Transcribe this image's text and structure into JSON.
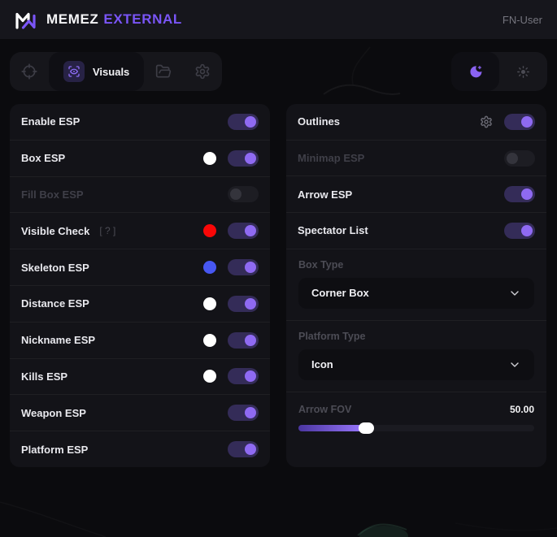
{
  "header": {
    "brand": "MEMEZ",
    "brand_accent": "EXTERNAL",
    "username": "FN-User"
  },
  "toolbar": {
    "active_tab": "Visuals"
  },
  "colors": {
    "accent": "#7a55f7",
    "toggle_on_knob": "#8f6af2",
    "toggle_on_track": "#342c58"
  },
  "left_panel": {
    "rows": [
      {
        "label": "Enable ESP",
        "enabled": true
      },
      {
        "label": "Box ESP",
        "enabled": true,
        "swatch": "#ffffff"
      },
      {
        "label": "Fill Box ESP",
        "enabled": false,
        "disabled": true
      },
      {
        "label": "Visible Check",
        "enabled": true,
        "swatch": "#f90707",
        "hint": "[ ? ]"
      },
      {
        "label": "Skeleton ESP",
        "enabled": true,
        "swatch": "#4757f2"
      },
      {
        "label": "Distance ESP",
        "enabled": true,
        "swatch": "#ffffff"
      },
      {
        "label": "Nickname ESP",
        "enabled": true,
        "swatch": "#ffffff"
      },
      {
        "label": "Kills ESP",
        "enabled": true,
        "swatch": "#ffffff"
      },
      {
        "label": "Weapon ESP",
        "enabled": true
      },
      {
        "label": "Platform ESP",
        "enabled": true
      }
    ]
  },
  "right_panel": {
    "rows": [
      {
        "label": "Outlines",
        "enabled": true,
        "has_settings": true
      },
      {
        "label": "Minimap ESP",
        "enabled": false,
        "disabled": true
      },
      {
        "label": "Arrow ESP",
        "enabled": true
      },
      {
        "label": "Spectator List",
        "enabled": true
      }
    ],
    "selects": [
      {
        "label": "Box Type",
        "value": "Corner Box"
      },
      {
        "label": "Platform Type",
        "value": "Icon"
      }
    ],
    "slider": {
      "label": "Arrow FOV",
      "value": "50.00",
      "percent": 29
    }
  }
}
